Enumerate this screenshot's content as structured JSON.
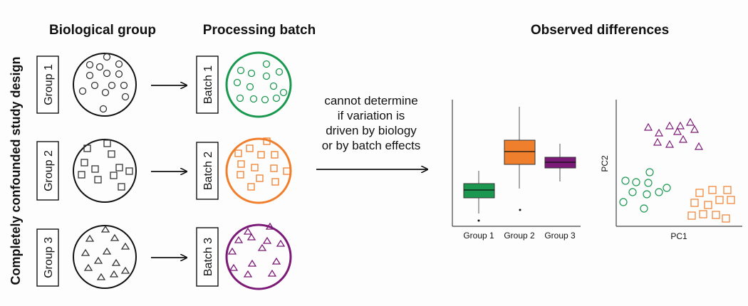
{
  "headers": {
    "biological": "Biological group",
    "processing": "Processing batch",
    "observed": "Observed differences"
  },
  "side_label": "Completely confounded study design",
  "groups": [
    {
      "label": "Group 1",
      "shape": "circle"
    },
    {
      "label": "Group 2",
      "shape": "square"
    },
    {
      "label": "Group 3",
      "shape": "triangle"
    }
  ],
  "batches": [
    {
      "label": "Batch 1",
      "color": "#1a9850"
    },
    {
      "label": "Batch 2",
      "color": "#f07f2d"
    },
    {
      "label": "Batch 3",
      "color": "#7b1a77"
    }
  ],
  "middle_text": [
    "cannot determine",
    "if variation is",
    "driven by biology",
    "or by batch effects"
  ],
  "boxplot": {
    "categories": [
      "Group 1",
      "Group 2",
      "Group 3"
    ],
    "colors": [
      "#1a9850",
      "#f07f2d",
      "#7b1a77"
    ]
  },
  "scatter": {
    "xlabel": "PC1",
    "ylabel": "PC2"
  }
}
